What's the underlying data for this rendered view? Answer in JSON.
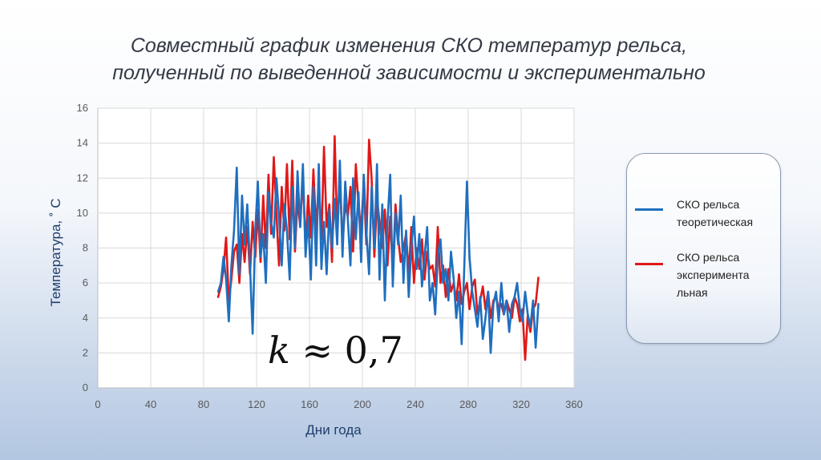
{
  "title_lines": [
    "Совместный график изменения СКО температур рельса,",
    "полученный по выведенной зависимости и экспериментально"
  ],
  "formula": {
    "symbol": "k",
    "rest": " ≈ 0,7"
  },
  "chart_data": {
    "type": "line",
    "xlabel": "Дни года",
    "ylabel": "Температура, ˚ С",
    "xlim": [
      0,
      360
    ],
    "ylim": [
      0,
      16
    ],
    "xticks": [
      0,
      40,
      80,
      120,
      160,
      200,
      240,
      280,
      320,
      360
    ],
    "yticks": [
      0,
      2,
      4,
      6,
      8,
      10,
      12,
      14,
      16
    ],
    "grid": true,
    "legend_position": "right",
    "series": [
      {
        "name": "СКО рельса теоретическая",
        "color": "#1f6fbf",
        "x": [
          91,
          93,
          95,
          97,
          99,
          101,
          103,
          105,
          107,
          109,
          111,
          113,
          115,
          117,
          119,
          121,
          123,
          125,
          127,
          129,
          131,
          133,
          135,
          137,
          139,
          141,
          143,
          145,
          147,
          149,
          151,
          153,
          155,
          157,
          159,
          161,
          163,
          165,
          167,
          169,
          171,
          173,
          175,
          177,
          179,
          181,
          183,
          185,
          187,
          189,
          191,
          193,
          195,
          197,
          199,
          201,
          203,
          205,
          207,
          209,
          211,
          213,
          215,
          217,
          219,
          221,
          223,
          225,
          227,
          229,
          231,
          233,
          235,
          237,
          239,
          241,
          243,
          245,
          247,
          249,
          251,
          253,
          255,
          257,
          259,
          261,
          263,
          265,
          267,
          269,
          271,
          273,
          275,
          277,
          279,
          281,
          283,
          285,
          287,
          289,
          291,
          293,
          295,
          297,
          299,
          301,
          303,
          305,
          307,
          309,
          311,
          313,
          315,
          317,
          319,
          321,
          323,
          325,
          327,
          329,
          331,
          333
        ],
        "values": [
          5.5,
          6.0,
          7.5,
          6.2,
          3.8,
          7.0,
          9.0,
          12.6,
          6.5,
          11.0,
          8.2,
          10.5,
          7.0,
          3.1,
          9.0,
          11.8,
          7.5,
          8.8,
          6.0,
          11.2,
          9.5,
          8.6,
          12.0,
          9.8,
          7.0,
          10.5,
          9.0,
          6.2,
          11.5,
          8.0,
          12.4,
          9.2,
          12.8,
          7.5,
          9.8,
          6.2,
          11.5,
          7.0,
          12.8,
          6.8,
          9.5,
          6.5,
          10.2,
          8.0,
          10.8,
          8.2,
          13.0,
          7.5,
          11.8,
          9.6,
          7.0,
          12.0,
          8.5,
          11.2,
          7.2,
          12.2,
          9.0,
          6.5,
          11.5,
          8.0,
          12.8,
          6.2,
          10.5,
          5.0,
          9.5,
          12.2,
          5.8,
          10.0,
          8.2,
          11.0,
          6.0,
          9.0,
          5.2,
          8.0,
          9.8,
          6.8,
          8.8,
          5.8,
          7.5,
          9.2,
          5.0,
          6.0,
          4.2,
          7.5,
          8.5,
          6.0,
          6.8,
          5.0,
          7.8,
          6.2,
          4.0,
          5.5,
          2.5,
          6.8,
          11.8,
          7.5,
          5.5,
          4.5,
          3.5,
          5.2,
          2.8,
          4.0,
          5.5,
          2.0,
          4.8,
          5.5,
          3.8,
          6.0,
          4.2,
          5.0,
          3.2,
          4.8,
          5.2,
          6.0,
          4.5,
          3.8,
          5.5,
          4.2,
          3.5,
          5.0,
          2.3,
          4.8
        ]
      },
      {
        "name": "СКО рельса экспериментальная",
        "color": "#e01818",
        "x": [
          91,
          93,
          95,
          97,
          99,
          101,
          103,
          105,
          107,
          109,
          111,
          113,
          115,
          117,
          119,
          121,
          123,
          125,
          127,
          129,
          131,
          133,
          135,
          137,
          139,
          141,
          143,
          145,
          147,
          149,
          151,
          153,
          155,
          157,
          159,
          161,
          163,
          165,
          167,
          169,
          171,
          173,
          175,
          177,
          179,
          181,
          183,
          185,
          187,
          189,
          191,
          193,
          195,
          197,
          199,
          201,
          203,
          205,
          207,
          209,
          211,
          213,
          215,
          217,
          219,
          221,
          223,
          225,
          227,
          229,
          231,
          233,
          235,
          237,
          239,
          241,
          243,
          245,
          247,
          249,
          251,
          253,
          255,
          257,
          259,
          261,
          263,
          265,
          267,
          269,
          271,
          273,
          275,
          277,
          279,
          281,
          283,
          285,
          287,
          289,
          291,
          293,
          295,
          297,
          299,
          301,
          303,
          305,
          307,
          309,
          311,
          313,
          315,
          317,
          319,
          321,
          323,
          325,
          327,
          329,
          331,
          333
        ],
        "values": [
          5.2,
          5.8,
          6.8,
          8.6,
          5.0,
          6.2,
          7.8,
          8.2,
          6.0,
          8.8,
          7.2,
          9.2,
          6.5,
          9.5,
          7.5,
          10.2,
          7.2,
          11.0,
          8.0,
          12.2,
          8.8,
          13.2,
          10.0,
          7.0,
          11.5,
          9.0,
          12.8,
          8.5,
          13.0,
          7.8,
          10.8,
          9.2,
          12.2,
          8.0,
          11.0,
          8.6,
          12.5,
          9.0,
          11.8,
          8.5,
          13.8,
          9.2,
          10.5,
          7.2,
          14.4,
          9.0,
          12.0,
          8.2,
          10.5,
          9.8,
          11.5,
          7.8,
          12.8,
          10.5,
          9.0,
          11.8,
          8.2,
          14.2,
          12.0,
          7.5,
          10.8,
          9.5,
          8.0,
          10.2,
          7.0,
          9.8,
          6.5,
          10.5,
          8.6,
          7.2,
          8.0,
          8.8,
          6.5,
          9.2,
          6.0,
          8.0,
          6.8,
          8.5,
          6.2,
          7.8,
          6.8,
          7.0,
          5.8,
          9.2,
          6.0,
          7.0,
          5.2,
          6.8,
          5.5,
          6.0,
          5.0,
          6.5,
          4.8,
          5.5,
          6.0,
          4.5,
          5.8,
          6.2,
          4.2,
          5.0,
          5.8,
          4.5,
          5.5,
          4.0,
          5.0,
          5.2,
          4.5,
          4.8,
          4.2,
          5.0,
          4.5,
          4.0,
          5.2,
          4.8,
          3.8,
          4.5,
          1.6,
          4.2,
          3.2,
          4.5,
          4.8,
          6.3
        ]
      }
    ]
  }
}
